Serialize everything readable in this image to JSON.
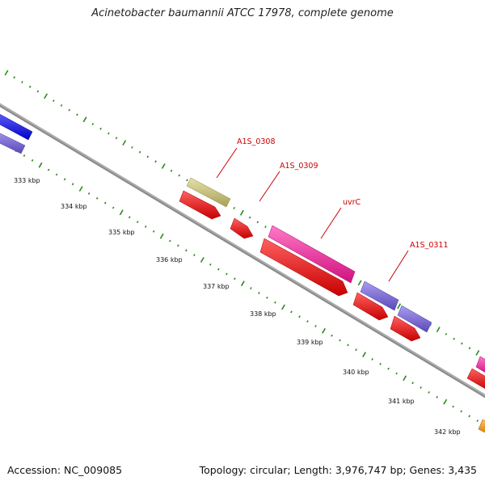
{
  "title": "Acinetobacter baumannii ATCC 17978, complete genome",
  "footer": {
    "accession": "Accession: NC_009085",
    "topology": "Topology: circular; Length: 3,976,747 bp; Genes: 3,435"
  },
  "colors": {
    "backbone": "#8c8c8c",
    "tick": "#2a8a1a",
    "label_red": "#cc0000",
    "feature_blue": "#1a1aee",
    "feature_slate": "#7a6ad8",
    "feature_khaki": "#c8c07a",
    "feature_red": "#ee1111",
    "feature_pink": "#ee1a99",
    "feature_orange": "#f09010"
  },
  "ticks": [
    "333 kbp",
    "334 kbp",
    "335 kbp",
    "336 kbp",
    "337 kbp",
    "338 kbp",
    "339 kbp",
    "340 kbp",
    "341 kbp",
    "342 kbp"
  ],
  "genes": [
    {
      "name": "A1S_0308"
    },
    {
      "name": "A1S_0309"
    },
    {
      "name": "uvrC"
    },
    {
      "name": "A1S_0311"
    }
  ]
}
